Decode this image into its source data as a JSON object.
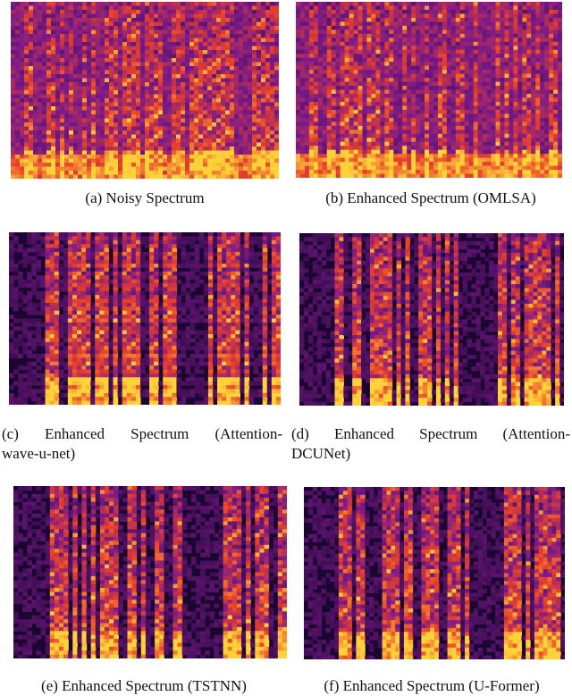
{
  "figure": {
    "panels": [
      {
        "id": "a",
        "caption": "(a)  Noisy Spectrum",
        "spectrum": "noisy-spectrogram"
      },
      {
        "id": "b",
        "caption": "(b)  Enhanced Spectrum (OMLSA)",
        "spectrum": "omlsa-spectrogram"
      },
      {
        "id": "c",
        "caption_line1": "(c)  Enhanced  Spectrum  (Attention-",
        "caption_line2": "wave-u-net)",
        "spectrum": "attention-wave-u-net-spectrogram"
      },
      {
        "id": "d",
        "caption_line1": "(d)  Enhanced  Spectrum  (Attention-",
        "caption_line2": "DCUNet)",
        "spectrum": "attention-dcunet-spectrogram"
      },
      {
        "id": "e",
        "caption": "(e)  Enhanced Spectrum (TSTNN)",
        "spectrum": "tstnn-spectrogram"
      },
      {
        "id": "f",
        "caption": "(f)  Enhanced Spectrum (U-Former)",
        "spectrum": "u-former-spectrogram"
      }
    ],
    "colors": {
      "background": "#1a0630",
      "mid": "#7a1a8a",
      "hot": "#e8402a",
      "peak": "#ffd23a"
    }
  }
}
